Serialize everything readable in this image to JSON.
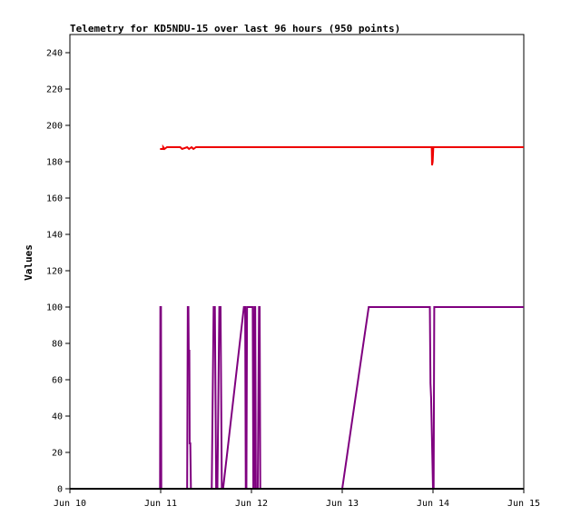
{
  "chart_data": {
    "type": "line",
    "title": "Telemetry for KD5NDU-15 over last 96 hours (950 points)",
    "ylabel": "Values",
    "xlabel": "",
    "xlim": [
      "2023-06-10",
      "2023-06-15"
    ],
    "ylim": [
      0,
      250
    ],
    "x_ticks": [
      "Jun 10",
      "Jun 11",
      "Jun 12",
      "Jun 13",
      "Jun 14",
      "Jun 15"
    ],
    "y_ticks": [
      0,
      20,
      40,
      60,
      80,
      100,
      120,
      140,
      160,
      180,
      200,
      220,
      240
    ],
    "grid": false,
    "legend": "none",
    "series": [
      {
        "color": "#ee0000",
        "x": [
          "2023-06-10 23:50",
          "2023-06-11 00:40",
          "2023-06-11 00:40",
          "2023-06-11 01:00",
          "2023-06-11 01:40",
          "2023-06-11 05:10",
          "2023-06-11 05:40",
          "2023-06-11 07:00",
          "2023-06-11 07:30",
          "2023-06-11 08:10",
          "2023-06-11 08:40",
          "2023-06-11 09:20",
          "2023-06-13 23:40",
          "2023-06-13 23:45",
          "2023-06-13 23:55",
          "2023-06-14 00:05",
          "2023-06-14 00:10",
          "2023-06-15 00:00"
        ],
        "values": [
          187,
          187,
          188,
          187,
          188,
          188,
          187,
          188,
          187,
          188,
          187,
          188,
          188,
          178,
          180,
          188,
          188,
          188
        ]
      },
      {
        "color": "#7f007f",
        "x": [
          "2023-06-10 23:50",
          "2023-06-10 23:55",
          "2023-06-11 00:05",
          "2023-06-11 00:10",
          "2023-06-11 07:00",
          "2023-06-11 07:10",
          "2023-06-11 07:20",
          "2023-06-11 07:25",
          "2023-06-11 07:35",
          "2023-06-11 07:40",
          "2023-06-11 07:50",
          "2023-06-11 08:00",
          "2023-06-11 13:30",
          "2023-06-11 14:00",
          "2023-06-11 14:20",
          "2023-06-11 14:40",
          "2023-06-11 15:00",
          "2023-06-11 15:30",
          "2023-06-11 15:50",
          "2023-06-11 16:10",
          "2023-06-11 16:30",
          "2023-06-11 22:00",
          "2023-06-11 22:20",
          "2023-06-11 22:30",
          "2023-06-11 22:40",
          "2023-06-11 22:50",
          "2023-06-12 00:20",
          "2023-06-12 00:30",
          "2023-06-12 00:40",
          "2023-06-12 00:50",
          "2023-06-12 01:00",
          "2023-06-12 01:10",
          "2023-06-12 01:40",
          "2023-06-12 02:00",
          "2023-06-12 02:10",
          "2023-06-12 02:20",
          "2023-06-12 02:30",
          "2023-06-12 02:40",
          "2023-06-13 00:00",
          "2023-06-13 07:00",
          "2023-06-13 23:10",
          "2023-06-13 23:20",
          "2023-06-13 23:30",
          "2023-06-14 00:00",
          "2023-06-14 00:10",
          "2023-06-14 00:20",
          "2023-06-15 00:00"
        ],
        "values": [
          0,
          100,
          100,
          0,
          0,
          100,
          100,
          76,
          76,
          25,
          25,
          0,
          0,
          100,
          100,
          0,
          0,
          100,
          100,
          0,
          0,
          100,
          100,
          0,
          0,
          100,
          100,
          0,
          0,
          100,
          100,
          0,
          0,
          100,
          100,
          0,
          0,
          0,
          0,
          100,
          100,
          58,
          50,
          0,
          0,
          100,
          100
        ]
      },
      {
        "color": "#000000",
        "x": [
          "2023-06-10 00:00",
          "2023-06-15 00:00"
        ],
        "values": [
          0,
          0
        ]
      }
    ]
  }
}
